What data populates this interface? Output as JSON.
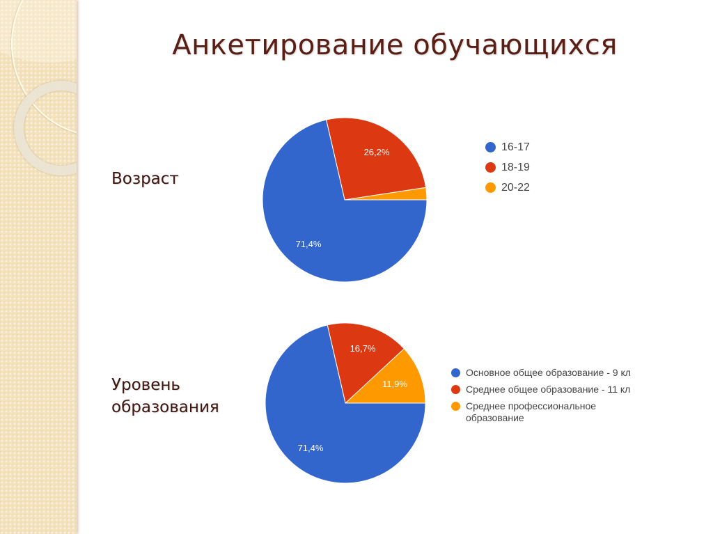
{
  "slide": {
    "title": "Анкетирование обучающихся"
  },
  "sections": [
    {
      "label": "Возраст"
    },
    {
      "label_line1": "Уровень",
      "label_line2": "образования"
    }
  ],
  "colors": {
    "blue": "#3366cc",
    "red": "#dc3912",
    "orange": "#ff9900",
    "title": "#5a1f14",
    "sidebar": "#f3e1bb"
  },
  "legends": {
    "age": [
      {
        "label": "16-17",
        "color": "#3366cc"
      },
      {
        "label": "18-19",
        "color": "#dc3912"
      },
      {
        "label": "20-22",
        "color": "#ff9900"
      }
    ],
    "education": [
      {
        "label": "Основное общее образование - 9 кл",
        "color": "#3366cc"
      },
      {
        "label": "Среднее общее образование - 11 кл",
        "color": "#dc3912"
      },
      {
        "label": "Среднее профессиональное образование",
        "color": "#ff9900"
      }
    ]
  },
  "chart_data": [
    {
      "type": "pie",
      "title": "Возраст",
      "categories": [
        "16-17",
        "18-19",
        "20-22"
      ],
      "values": [
        71.4,
        26.2,
        2.4
      ],
      "data_labels": [
        "71,4%",
        "26,2%",
        ""
      ],
      "colors": [
        "#3366cc",
        "#dc3912",
        "#ff9900"
      ],
      "legend_position": "right"
    },
    {
      "type": "pie",
      "title": "Уровень образования",
      "categories": [
        "Основное общее образование - 9 кл",
        "Среднее общее образование - 11 кл",
        "Среднее профессиональное образование"
      ],
      "values": [
        71.4,
        16.7,
        11.9
      ],
      "data_labels": [
        "71,4%",
        "16,7%",
        "11,9%"
      ],
      "colors": [
        "#3366cc",
        "#dc3912",
        "#ff9900"
      ],
      "legend_position": "right"
    }
  ]
}
